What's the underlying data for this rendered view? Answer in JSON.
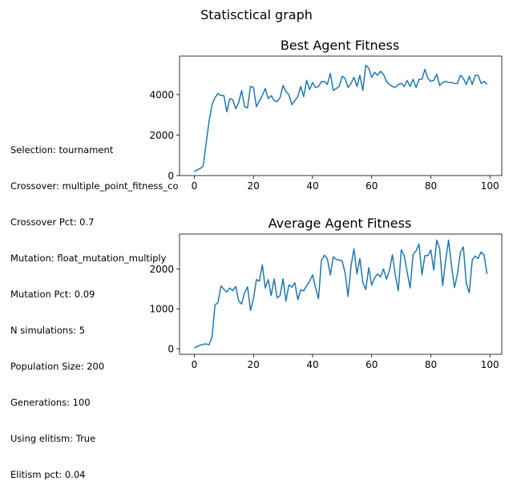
{
  "figure_title": "Statisctical graph",
  "params_text": [
    "Selection: tournament",
    "Crossover: multiple_point_fitness_co",
    "Crossover Pct: 0.7",
    "Mutation: float_mutation_multiply",
    "Mutation Pct: 0.09",
    "N simulations: 5",
    "Population Size: 200",
    "Generations: 100",
    "Using elitism: True",
    "Elitism pct: 0.04"
  ],
  "line_color": "#1f77b4",
  "chart_data": [
    {
      "type": "line",
      "title": "Best Agent Fitness",
      "xlabel": "",
      "ylabel": "",
      "xlim": [
        -5,
        104
      ],
      "ylim": [
        0,
        5900
      ],
      "xticks": [
        0,
        20,
        40,
        60,
        80,
        100
      ],
      "yticks": [
        0,
        2000,
        4000
      ],
      "grid": false,
      "series": [
        {
          "values": [
            200,
            280,
            350,
            480,
            1600,
            2700,
            3500,
            3850,
            4050,
            3950,
            3950,
            3150,
            3800,
            3750,
            3300,
            3600,
            4200,
            3400,
            3350,
            4400,
            4350,
            3400,
            3700,
            3950,
            4300,
            3800,
            3950,
            3700,
            3650,
            3850,
            4450,
            4150,
            4000,
            3500,
            3700,
            3900,
            4400,
            3900,
            4700,
            4250,
            4600,
            4350,
            4400,
            4650,
            4650,
            4500,
            5050,
            4200,
            4300,
            4400,
            4900,
            4800,
            4350,
            4550,
            4850,
            4400,
            4950,
            4200,
            5450,
            5300,
            4850,
            5100,
            4950,
            5150,
            5000,
            4650,
            4500,
            4400,
            4350,
            4500,
            4550,
            4400,
            4700,
            4400,
            4750,
            4350,
            4750,
            4750,
            5250,
            4800,
            4650,
            4700,
            5000,
            4450,
            4600,
            4650,
            4600,
            4600,
            4550,
            4550,
            4950,
            4800,
            4500,
            4900,
            4500,
            4950,
            4950,
            4550,
            4650,
            4500
          ]
        }
      ]
    },
    {
      "type": "line",
      "title": "Average Agent Fitness",
      "xlabel": "",
      "ylabel": "",
      "xlim": [
        -5,
        104
      ],
      "ylim": [
        -140,
        2870
      ],
      "xticks": [
        0,
        20,
        40,
        60,
        80,
        100
      ],
      "yticks": [
        0,
        1000,
        2000
      ],
      "grid": false,
      "series": [
        {
          "values": [
            20,
            60,
            90,
            110,
            120,
            100,
            300,
            1100,
            1150,
            1570,
            1490,
            1420,
            1520,
            1450,
            1560,
            1200,
            1120,
            1400,
            1550,
            960,
            1250,
            1730,
            1690,
            2100,
            1520,
            1730,
            1330,
            1750,
            1270,
            1330,
            1750,
            1190,
            1600,
            1540,
            1650,
            1230,
            1470,
            1450,
            1580,
            1690,
            1850,
            1530,
            1250,
            2220,
            2340,
            2250,
            1850,
            2300,
            2230,
            2220,
            2200,
            1900,
            1310,
            2070,
            2500,
            1870,
            2260,
            1660,
            1480,
            2030,
            1590,
            1780,
            1870,
            1800,
            2000,
            1740,
            1960,
            2350,
            1840,
            1450,
            2480,
            2330,
            1920,
            1520,
            2360,
            2450,
            2620,
            1850,
            2330,
            2330,
            2470,
            1970,
            2720,
            2500,
            1580,
            2200,
            2720,
            2080,
            1530,
            1870,
            2410,
            2550,
            1640,
            1400,
            2220,
            2320,
            2260,
            2420,
            2350,
            1870
          ]
        }
      ]
    }
  ]
}
